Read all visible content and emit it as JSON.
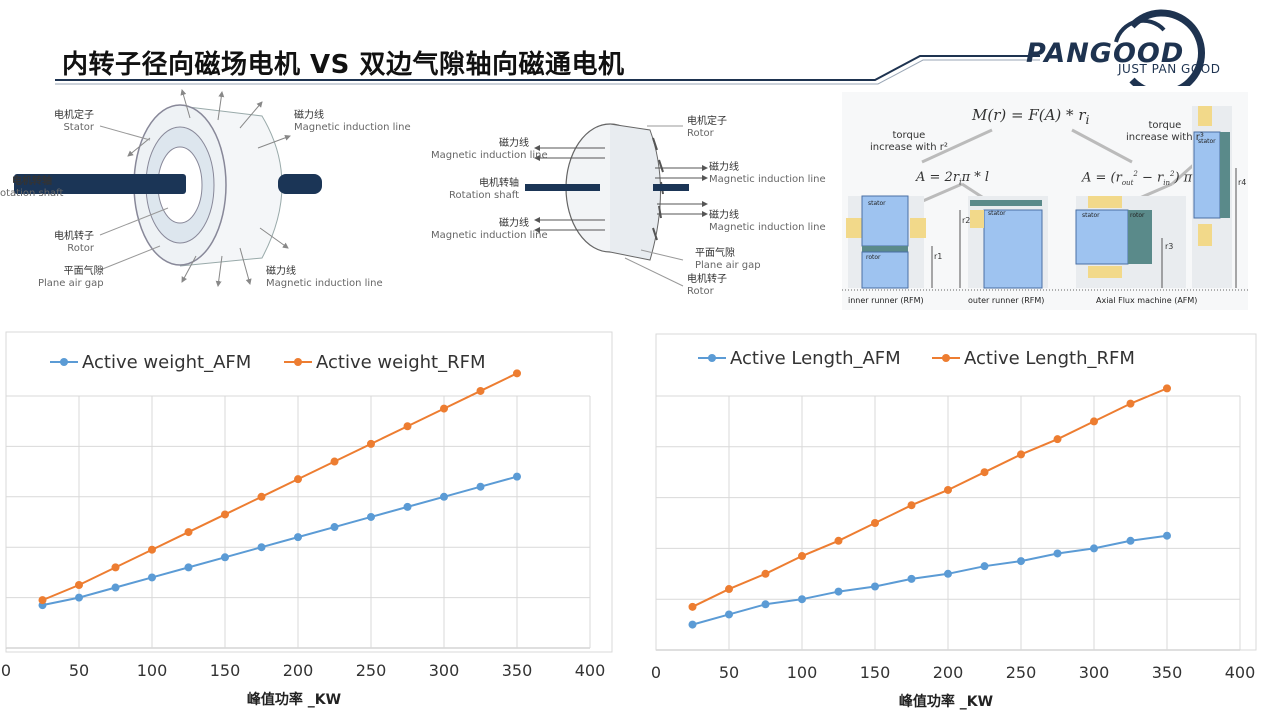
{
  "header": {
    "title": "内转子径向磁场电机 VS 双边气隙轴向磁通电机",
    "logo_text": "PANGOOD",
    "logo_tagline": "JUST PAN GOOD",
    "brand_color": "#1e3350"
  },
  "figure_left": {
    "stator": {
      "cn": "电机定子",
      "en": "Stator"
    },
    "shaft": {
      "cn": "电机转轴",
      "en": "otation shaft"
    },
    "rotor": {
      "cn": "电机转子",
      "en": "Rotor"
    },
    "airgap": {
      "cn": "平面气隙",
      "en": "Plane air gap"
    },
    "flux_top": {
      "cn": "磁力线",
      "en": "Magnetic induction line"
    },
    "flux_bottom": {
      "cn": "磁力线",
      "en": "Magnetic induction line"
    }
  },
  "figure_mid": {
    "flux_l1": {
      "cn": "磁力线",
      "en": "Magnetic induction line"
    },
    "shaft": {
      "cn": "电机转轴",
      "en": "Rotation shaft"
    },
    "flux_l2": {
      "cn": "磁力线",
      "en": "Magnetic induction line"
    },
    "stator": {
      "cn": "电机定子",
      "en": "Rotor"
    },
    "flux_r1": {
      "cn": "磁力线",
      "en": "Magnetic induction line"
    },
    "flux_r2": {
      "cn": "磁力线",
      "en": "Magnetic induction line"
    },
    "airgap": {
      "cn": "平面气隙",
      "en": "Plane air gap"
    },
    "rotor": {
      "cn": "电机转子",
      "en": "Rotor"
    }
  },
  "figure_right": {
    "formula_top": "M(r) = F(A) * r",
    "formula_top_sub": "i",
    "formula_left": "A = 2r",
    "formula_left_rest": "π * l",
    "formula_right": "A = (r",
    "formula_right_rest": " − r",
    "formula_right_end": ") π",
    "torque_left": "torque\nincrease with r²",
    "torque_right": "torque\nincrease with r³",
    "stator": "stator",
    "rotor": "rotor",
    "r1": "r1",
    "r2": "r2",
    "r3": "r3",
    "r4": "r4",
    "caption_inner": "inner runner (RFM)",
    "caption_outer": "outer runner (RFM)",
    "caption_axial": "Axial Flux machine (AFM)"
  },
  "chart_data": [
    {
      "type": "line",
      "xlabel": "峰值功率 _KW",
      "ylabel": "",
      "xlim": [
        0,
        400
      ],
      "x_ticks": [
        0,
        50,
        100,
        150,
        200,
        250,
        300,
        350,
        400
      ],
      "ylim": [
        0,
        100
      ],
      "y_ticks_count": 5,
      "grid": true,
      "legend": "top-left",
      "x": [
        25,
        50,
        75,
        100,
        125,
        150,
        175,
        200,
        225,
        250,
        275,
        300,
        325,
        350
      ],
      "series": [
        {
          "name": "Active weight_AFM",
          "color": "#5b9bd5",
          "values": [
            17,
            20,
            24,
            28,
            32,
            36,
            40,
            44,
            48,
            52,
            56,
            60,
            64,
            68
          ]
        },
        {
          "name": "Active weight_RFM",
          "color": "#ed7d31",
          "values": [
            19,
            25,
            32,
            39,
            46,
            53,
            60,
            67,
            74,
            81,
            88,
            95,
            102,
            109
          ]
        }
      ]
    },
    {
      "type": "line",
      "xlabel": "峰值功率 _KW",
      "ylabel": "",
      "xlim": [
        0,
        400
      ],
      "x_ticks": [
        0,
        50,
        100,
        150,
        200,
        250,
        300,
        350,
        400
      ],
      "ylim": [
        0,
        100
      ],
      "y_ticks_count": 5,
      "grid": true,
      "legend": "top-left",
      "x": [
        25,
        50,
        75,
        100,
        125,
        150,
        175,
        200,
        225,
        250,
        275,
        300,
        325,
        350
      ],
      "series": [
        {
          "name": "Active Length_AFM",
          "color": "#5b9bd5",
          "values": [
            10,
            14,
            18,
            20,
            23,
            25,
            28,
            30,
            33,
            35,
            38,
            40,
            43,
            45
          ]
        },
        {
          "name": "Active Length_RFM",
          "color": "#ed7d31",
          "values": [
            17,
            24,
            30,
            37,
            43,
            50,
            57,
            63,
            70,
            77,
            83,
            90,
            97,
            103
          ]
        }
      ]
    }
  ]
}
